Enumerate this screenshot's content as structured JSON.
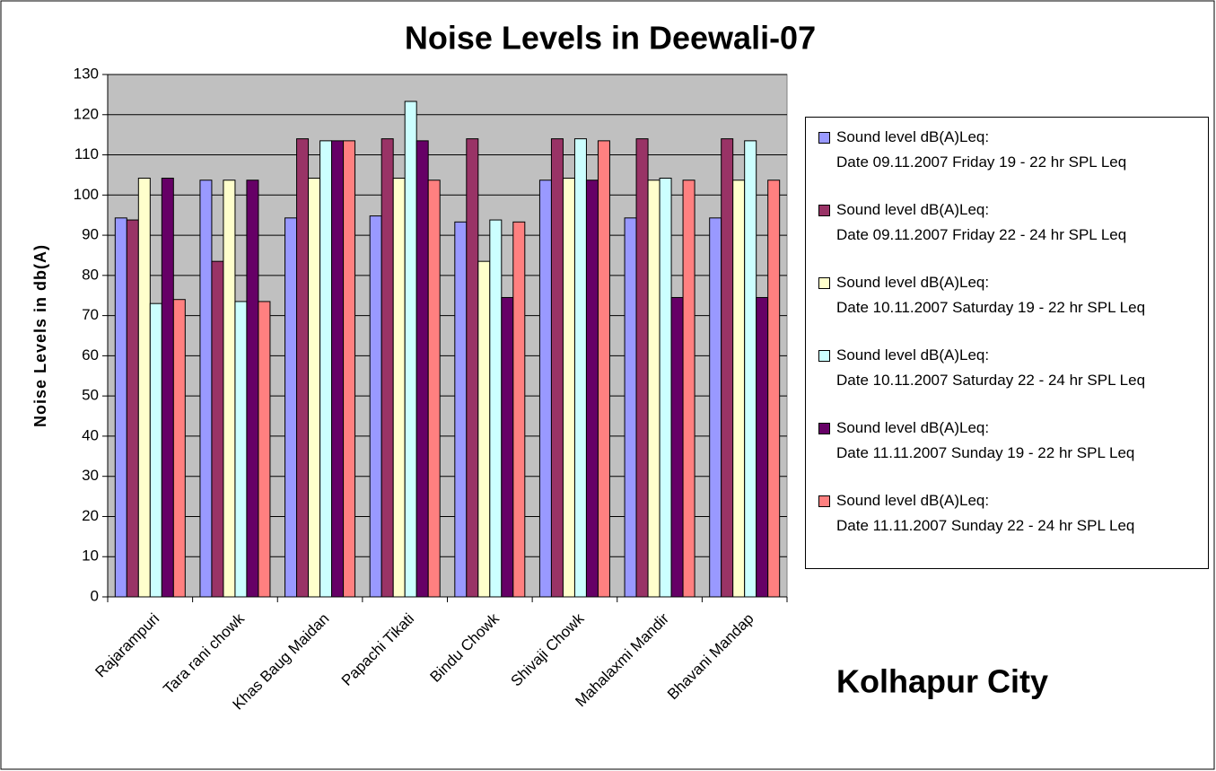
{
  "chart_data": {
    "type": "bar",
    "title": "Noise Levels in Deewali-07",
    "y_label": "Noise Levels in db(A)",
    "annotation": "Kolhapur City",
    "categories": [
      "Rajarampuri",
      "Tara rani chowk",
      "Khas Baug Maidan",
      "Papachi Tikati",
      "Bindu Chowk",
      "Shivaji Chowk",
      "Mahalaxmi Mandir",
      "Bhavani Mandap"
    ],
    "series": [
      {
        "name": "Sound level dB(A)Leq:\nDate 09.11.2007 Friday 19 - 22 hr SPL Leq",
        "color": "#9999ff",
        "values": [
          94.3,
          103.7,
          94.3,
          94.8,
          93.3,
          103.7,
          94.3,
          94.3
        ]
      },
      {
        "name": "Sound level dB(A)Leq:\nDate 09.11.2007 Friday 22 - 24 hr SPL Leq",
        "color": "#993366",
        "values": [
          93.8,
          83.5,
          114,
          114,
          114,
          114,
          114,
          114
        ]
      },
      {
        "name": "Sound level dB(A)Leq:\nDate 10.11.2007 Saturday 19 - 22 hr SPL Leq",
        "color": "#ffffcc",
        "values": [
          104.2,
          103.7,
          104.2,
          104.2,
          83.5,
          104.2,
          103.7,
          103.7
        ]
      },
      {
        "name": "Sound level dB(A)Leq:\nDate 10.11.2007 Saturday 22 - 24 hr SPL Leq",
        "color": "#ccffff",
        "values": [
          73,
          73.5,
          113.5,
          123.3,
          93.8,
          114,
          104.2,
          113.5
        ]
      },
      {
        "name": "Sound level dB(A)Leq:\nDate 11.11.2007 Sunday  19 - 22 hr SPL Leq",
        "color": "#660066",
        "values": [
          104.2,
          103.7,
          113.5,
          113.5,
          74.5,
          103.7,
          74.5,
          74.5
        ]
      },
      {
        "name": "Sound level dB(A)Leq:\nDate 11.11.2007 Sunday  22 - 24 hr SPL Leq",
        "color": "#ff8080",
        "values": [
          74,
          73.5,
          113.5,
          103.7,
          93.3,
          113.5,
          103.7,
          103.7
        ]
      }
    ],
    "ylim": [
      0,
      130
    ],
    "yticks": [
      0,
      10,
      20,
      30,
      40,
      50,
      60,
      70,
      80,
      90,
      100,
      110,
      120,
      130
    ],
    "grid": true,
    "plot_background": "#c0c0c0"
  }
}
